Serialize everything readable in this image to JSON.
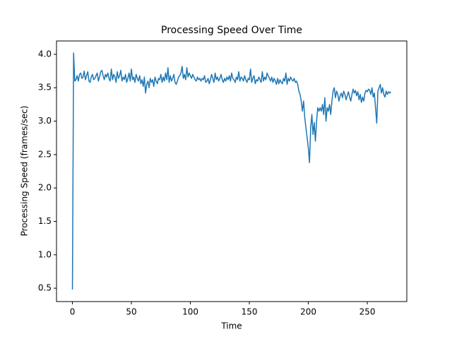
{
  "chart_data": {
    "type": "line",
    "title": "Processing Speed Over Time",
    "x_label": "Time",
    "y_label": "Processing Speed (frames/sec)",
    "x": [
      0,
      1,
      2,
      3,
      4,
      5,
      6,
      7,
      8,
      9,
      10,
      11,
      12,
      13,
      14,
      15,
      16,
      17,
      18,
      19,
      20,
      21,
      22,
      23,
      24,
      25,
      26,
      27,
      28,
      29,
      30,
      31,
      32,
      33,
      34,
      35,
      36,
      37,
      38,
      39,
      40,
      41,
      42,
      43,
      44,
      45,
      46,
      47,
      48,
      49,
      50,
      51,
      52,
      53,
      54,
      55,
      56,
      57,
      58,
      59,
      60,
      61,
      62,
      63,
      64,
      65,
      66,
      67,
      68,
      69,
      70,
      71,
      72,
      73,
      74,
      75,
      76,
      77,
      78,
      79,
      80,
      81,
      82,
      83,
      84,
      85,
      86,
      87,
      88,
      89,
      90,
      91,
      92,
      93,
      94,
      95,
      96,
      97,
      98,
      99,
      100,
      101,
      102,
      103,
      104,
      105,
      106,
      107,
      108,
      109,
      110,
      111,
      112,
      113,
      114,
      115,
      116,
      117,
      118,
      119,
      120,
      121,
      122,
      123,
      124,
      125,
      126,
      127,
      128,
      129,
      130,
      131,
      132,
      133,
      134,
      135,
      136,
      137,
      138,
      139,
      140,
      141,
      142,
      143,
      144,
      145,
      146,
      147,
      148,
      149,
      150,
      151,
      152,
      153,
      154,
      155,
      156,
      157,
      158,
      159,
      160,
      161,
      162,
      163,
      164,
      165,
      166,
      167,
      168,
      169,
      170,
      171,
      172,
      173,
      174,
      175,
      176,
      177,
      178,
      179,
      180,
      181,
      182,
      183,
      184,
      185,
      186,
      187,
      188,
      189,
      190,
      191,
      192,
      193,
      194,
      195,
      196,
      197,
      198,
      199,
      200,
      201,
      202,
      203,
      204,
      205,
      206,
      207,
      208,
      209,
      210,
      211,
      212,
      213,
      214,
      215,
      216,
      217,
      218,
      219,
      220,
      221,
      222,
      223,
      224,
      225,
      226,
      227,
      228,
      229,
      230,
      231,
      232,
      233,
      234,
      235,
      236,
      237,
      238,
      239,
      240,
      241,
      242,
      243,
      244,
      245,
      246,
      247,
      248,
      249,
      250,
      251,
      252,
      253,
      254,
      255,
      256,
      257,
      258,
      259,
      260,
      261,
      262,
      263,
      264,
      265,
      266,
      267,
      268,
      269,
      270
    ],
    "series": [
      {
        "color": "#1f77b4",
        "values": [
          0.48,
          4.02,
          3.6,
          3.62,
          3.68,
          3.6,
          3.7,
          3.72,
          3.64,
          3.66,
          3.75,
          3.62,
          3.68,
          3.74,
          3.6,
          3.58,
          3.66,
          3.7,
          3.62,
          3.64,
          3.68,
          3.72,
          3.6,
          3.66,
          3.74,
          3.76,
          3.68,
          3.62,
          3.7,
          3.66,
          3.72,
          3.64,
          3.6,
          3.78,
          3.62,
          3.7,
          3.66,
          3.58,
          3.74,
          3.64,
          3.68,
          3.76,
          3.6,
          3.66,
          3.62,
          3.7,
          3.58,
          3.64,
          3.72,
          3.6,
          3.78,
          3.62,
          3.66,
          3.58,
          3.7,
          3.64,
          3.6,
          3.68,
          3.56,
          3.62,
          3.52,
          3.66,
          3.42,
          3.55,
          3.6,
          3.5,
          3.64,
          3.58,
          3.62,
          3.52,
          3.66,
          3.6,
          3.56,
          3.64,
          3.62,
          3.7,
          3.58,
          3.66,
          3.6,
          3.72,
          3.62,
          3.8,
          3.58,
          3.68,
          3.6,
          3.64,
          3.7,
          3.58,
          3.55,
          3.6,
          3.66,
          3.68,
          3.72,
          3.82,
          3.64,
          3.7,
          3.62,
          3.8,
          3.66,
          3.72,
          3.68,
          3.64,
          3.7,
          3.66,
          3.62,
          3.6,
          3.66,
          3.62,
          3.64,
          3.6,
          3.64,
          3.62,
          3.68,
          3.58,
          3.6,
          3.64,
          3.56,
          3.62,
          3.7,
          3.64,
          3.58,
          3.72,
          3.62,
          3.66,
          3.6,
          3.64,
          3.7,
          3.62,
          3.58,
          3.64,
          3.6,
          3.66,
          3.62,
          3.68,
          3.6,
          3.72,
          3.64,
          3.62,
          3.58,
          3.66,
          3.62,
          3.74,
          3.6,
          3.66,
          3.64,
          3.6,
          3.68,
          3.62,
          3.58,
          3.64,
          3.62,
          3.78,
          3.58,
          3.64,
          3.68,
          3.56,
          3.62,
          3.6,
          3.66,
          3.62,
          3.58,
          3.74,
          3.6,
          3.66,
          3.62,
          3.72,
          3.68,
          3.64,
          3.6,
          3.66,
          3.58,
          3.64,
          3.6,
          3.55,
          3.64,
          3.56,
          3.62,
          3.58,
          3.56,
          3.64,
          3.6,
          3.72,
          3.55,
          3.64,
          3.6,
          3.66,
          3.62,
          3.6,
          3.64,
          3.58,
          3.6,
          3.55,
          3.45,
          3.4,
          3.3,
          3.15,
          3.3,
          3.05,
          2.9,
          2.75,
          2.6,
          2.38,
          2.9,
          3.1,
          2.8,
          2.98,
          2.7,
          3.0,
          3.2,
          3.15,
          3.2,
          3.15,
          3.25,
          3.1,
          3.35,
          3.0,
          3.2,
          3.15,
          3.25,
          3.1,
          3.3,
          3.45,
          3.5,
          3.35,
          3.45,
          3.4,
          3.3,
          3.38,
          3.42,
          3.35,
          3.45,
          3.4,
          3.32,
          3.38,
          3.44,
          3.36,
          3.3,
          3.4,
          3.48,
          3.42,
          3.46,
          3.38,
          3.44,
          3.32,
          3.4,
          3.28,
          3.36,
          3.3,
          3.42,
          3.46,
          3.44,
          3.48,
          3.46,
          3.4,
          3.5,
          3.36,
          3.42,
          3.2,
          2.97,
          3.45,
          3.5,
          3.55,
          3.42,
          3.5,
          3.4,
          3.36,
          3.45,
          3.4,
          3.44,
          3.42,
          3.44
        ]
      }
    ],
    "xlim": [
      -13.5,
      283.5
    ],
    "xticks": [
      0,
      50,
      100,
      150,
      200,
      250
    ],
    "ylim": [
      0.3,
      4.2
    ],
    "yticks": [
      0.5,
      {
        "value": 1.0,
        "label": "1.0"
      },
      1.5,
      {
        "value": 2.0,
        "label": "2.0"
      },
      2.5,
      {
        "value": 3.0,
        "label": "3.0"
      },
      3.5,
      {
        "value": 4.0,
        "label": "4.0"
      }
    ],
    "grid": false
  }
}
